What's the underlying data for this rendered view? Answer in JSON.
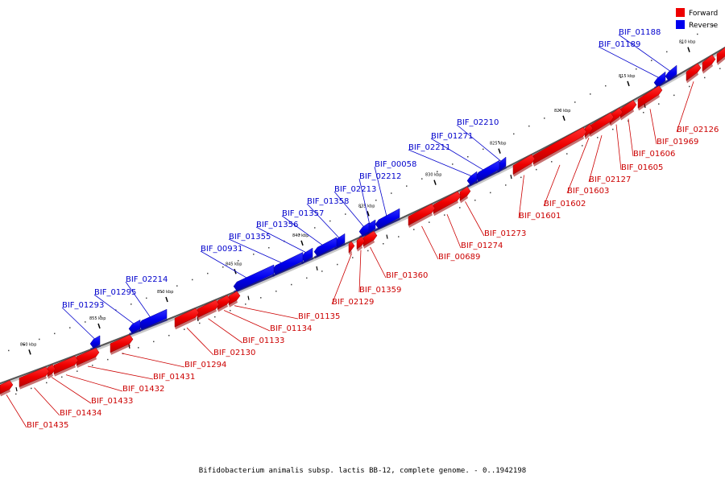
{
  "title": "Bifidobacterium animalis subsp. lactis BB-12, complete genome. - 0..1942198",
  "legend": {
    "forward": {
      "label": "Forward",
      "color": "#ee0000"
    },
    "reverse": {
      "label": "Reverse",
      "color": "#0000ee"
    }
  },
  "scale_ticks": [
    "810 kbp",
    "815 kbp",
    "820 kbp",
    "825 kbp",
    "830 kbp",
    "835 kbp",
    "840 kbp",
    "845 kbp",
    "850 kbp",
    "855 kbp",
    "860 kbp"
  ],
  "reverse_genes": [
    "BIF_01188",
    "BIF_01189",
    "BIF_02210",
    "BIF_01271",
    "BIF_02211",
    "BIF_00058",
    "BIF_02212",
    "BIF_02213",
    "BIF_01358",
    "BIF_01357",
    "BIF_01356",
    "BIF_01355",
    "BIF_00931",
    "BIF_02214",
    "BIF_01295",
    "BIF_01293"
  ],
  "forward_genes": [
    "BIF_02126",
    "BIF_01969",
    "BIF_01606",
    "BIF_01605",
    "BIF_02127",
    "BIF_01603",
    "BIF_01602",
    "BIF_01601",
    "BIF_01273",
    "BIF_01274",
    "BIF_00689",
    "BIF_01360",
    "BIF_01359",
    "BIF_02129",
    "BIF_01135",
    "BIF_01134",
    "BIF_01133",
    "BIF_02130",
    "BIF_01294",
    "BIF_01431",
    "BIF_01432",
    "BIF_01433",
    "BIF_01434",
    "BIF_01435"
  ]
}
